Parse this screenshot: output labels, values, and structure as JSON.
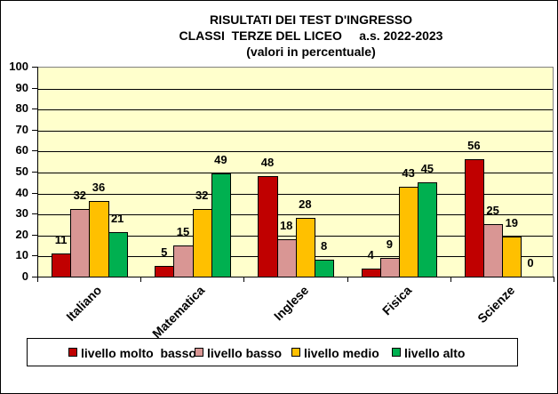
{
  "chart_data": {
    "type": "bar",
    "title": "RISULTATI DEI TEST D'INGRESSO",
    "subtitle": "CLASSI  TERZE DEL LICEO     a.s. 2022-2023",
    "subtitle2": "(valori in percentuale)",
    "xlabel": "",
    "ylabel": "",
    "ylim": [
      0,
      100
    ],
    "yticks": [
      0,
      10,
      20,
      30,
      40,
      50,
      60,
      70,
      80,
      90,
      100
    ],
    "grid": true,
    "legend_position": "bottom",
    "categories": [
      "Italiano",
      "Matematica",
      "Inglese",
      "Fisica",
      "Scienze"
    ],
    "series": [
      {
        "name": "livello molto  basso",
        "color": "#c00000",
        "values": [
          11,
          5,
          48,
          4,
          56
        ]
      },
      {
        "name": "livello basso",
        "color": "#d99694",
        "values": [
          32,
          15,
          18,
          9,
          25
        ]
      },
      {
        "name": "livello medio",
        "color": "#ffc000",
        "values": [
          36,
          32,
          28,
          43,
          19
        ]
      },
      {
        "name": "livello alto",
        "color": "#00b050",
        "values": [
          21,
          49,
          8,
          45,
          0
        ]
      }
    ],
    "plot_background": "#ffffcc"
  }
}
